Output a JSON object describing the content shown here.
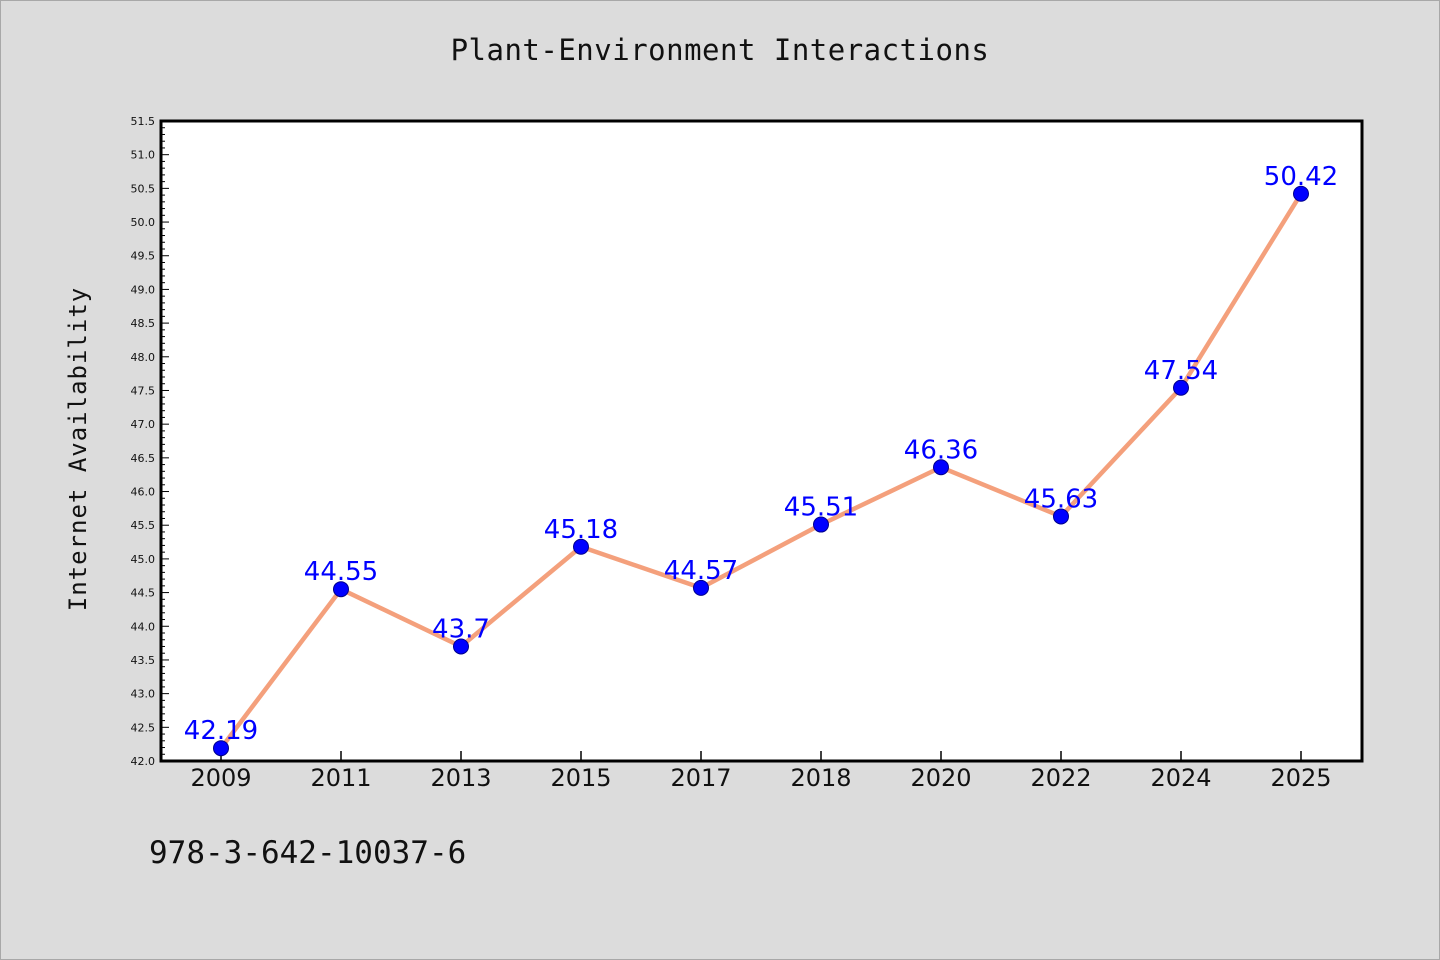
{
  "chart_data": {
    "type": "line",
    "title": "Plant-Environment Interactions",
    "xlabel": "",
    "ylabel": "Internet Availability",
    "categories": [
      "2009",
      "2011",
      "2013",
      "2015",
      "2017",
      "2018",
      "2020",
      "2022",
      "2024",
      "2025"
    ],
    "series": [
      {
        "values": [
          42.19,
          44.55,
          43.7,
          45.18,
          44.57,
          45.51,
          46.36,
          45.63,
          47.54,
          50.42
        ],
        "labels": [
          "42.19",
          "44.55",
          "43.7",
          "45.18",
          "44.57",
          "45.51",
          "46.36",
          "45.63",
          "47.54",
          "50.42"
        ],
        "line_color": "#f4a07c",
        "marker_color": "#0000ff"
      }
    ],
    "ylim": [
      42.0,
      51.5
    ],
    "yticks": [
      "42.0",
      "42.5",
      "43.0",
      "43.5",
      "44.0",
      "44.5",
      "45.0",
      "45.5",
      "46.0",
      "46.5",
      "47.0",
      "47.5",
      "48.0",
      "48.5",
      "49.0",
      "49.5",
      "50.0",
      "50.5",
      "51.0",
      "51.5"
    ],
    "grid": false,
    "legend": "none",
    "plot_background": "#ffffff",
    "figure_background": "#dcdcdc"
  },
  "footer": {
    "code": "978-3-642-10037-6"
  }
}
